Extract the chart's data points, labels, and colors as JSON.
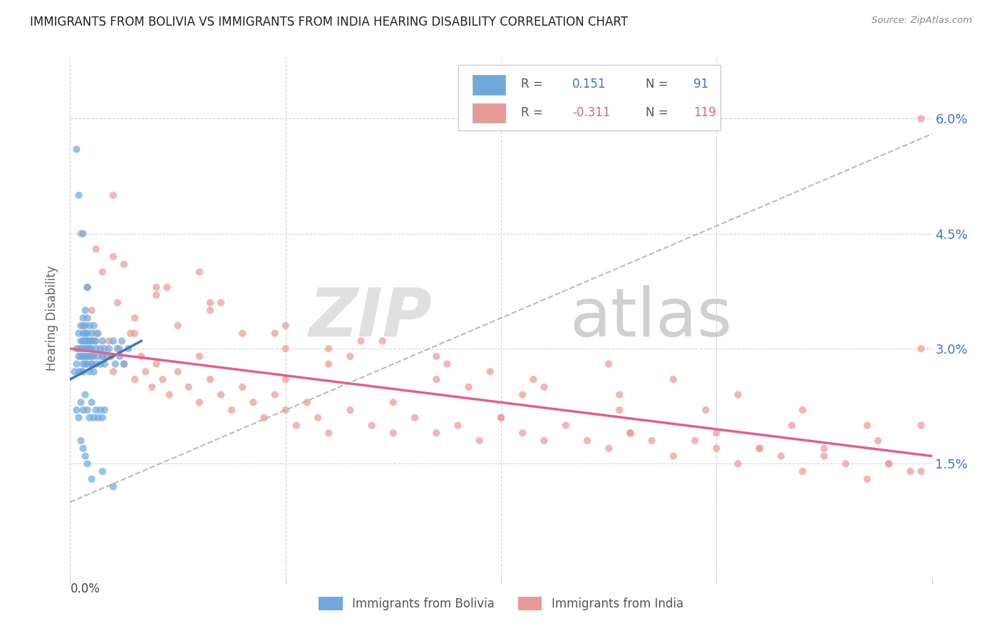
{
  "title": "IMMIGRANTS FROM BOLIVIA VS IMMIGRANTS FROM INDIA HEARING DISABILITY CORRELATION CHART",
  "source": "Source: ZipAtlas.com",
  "ylabel": "Hearing Disability",
  "ytick_labels": [
    "1.5%",
    "3.0%",
    "4.5%",
    "6.0%"
  ],
  "ytick_values": [
    0.015,
    0.03,
    0.045,
    0.06
  ],
  "xlim": [
    0.0,
    0.4
  ],
  "ylim": [
    0.0,
    0.068
  ],
  "color_bolivia": "#6fa8dc",
  "color_india": "#ea9999",
  "trendline_bolivia_color": "#4472c4",
  "trendline_india_color": "#e06090",
  "trendline_dashed_color": "#aaaaaa",
  "background_color": "#ffffff",
  "watermark_zip": "ZIP",
  "watermark_atlas": "atlas",
  "bolivia_x": [
    0.002,
    0.003,
    0.003,
    0.004,
    0.004,
    0.004,
    0.005,
    0.005,
    0.005,
    0.005,
    0.005,
    0.006,
    0.006,
    0.006,
    0.006,
    0.006,
    0.006,
    0.006,
    0.007,
    0.007,
    0.007,
    0.007,
    0.007,
    0.007,
    0.007,
    0.008,
    0.008,
    0.008,
    0.008,
    0.008,
    0.008,
    0.009,
    0.009,
    0.009,
    0.009,
    0.009,
    0.01,
    0.01,
    0.01,
    0.01,
    0.01,
    0.011,
    0.011,
    0.011,
    0.011,
    0.012,
    0.012,
    0.012,
    0.013,
    0.013,
    0.014,
    0.014,
    0.015,
    0.015,
    0.016,
    0.016,
    0.017,
    0.018,
    0.019,
    0.02,
    0.021,
    0.022,
    0.023,
    0.024,
    0.025,
    0.027,
    0.003,
    0.004,
    0.005,
    0.006,
    0.007,
    0.008,
    0.009,
    0.01,
    0.011,
    0.012,
    0.013,
    0.014,
    0.015,
    0.016,
    0.005,
    0.006,
    0.007,
    0.008,
    0.003,
    0.004,
    0.006,
    0.008,
    0.01,
    0.015,
    0.02
  ],
  "bolivia_y": [
    0.027,
    0.03,
    0.028,
    0.032,
    0.029,
    0.027,
    0.033,
    0.031,
    0.029,
    0.027,
    0.03,
    0.034,
    0.032,
    0.03,
    0.028,
    0.031,
    0.029,
    0.027,
    0.035,
    0.033,
    0.031,
    0.029,
    0.032,
    0.03,
    0.028,
    0.034,
    0.032,
    0.03,
    0.028,
    0.031,
    0.029,
    0.033,
    0.031,
    0.029,
    0.027,
    0.03,
    0.032,
    0.03,
    0.028,
    0.031,
    0.029,
    0.033,
    0.031,
    0.029,
    0.027,
    0.03,
    0.028,
    0.031,
    0.029,
    0.032,
    0.03,
    0.028,
    0.031,
    0.029,
    0.03,
    0.028,
    0.029,
    0.03,
    0.029,
    0.031,
    0.028,
    0.03,
    0.029,
    0.031,
    0.028,
    0.03,
    0.022,
    0.021,
    0.023,
    0.022,
    0.024,
    0.022,
    0.021,
    0.023,
    0.021,
    0.022,
    0.021,
    0.022,
    0.021,
    0.022,
    0.018,
    0.017,
    0.016,
    0.015,
    0.056,
    0.05,
    0.045,
    0.038,
    0.013,
    0.014,
    0.012
  ],
  "india_x": [
    0.004,
    0.006,
    0.008,
    0.01,
    0.012,
    0.015,
    0.018,
    0.02,
    0.023,
    0.025,
    0.028,
    0.03,
    0.033,
    0.035,
    0.038,
    0.04,
    0.043,
    0.046,
    0.05,
    0.055,
    0.06,
    0.065,
    0.07,
    0.075,
    0.08,
    0.085,
    0.09,
    0.095,
    0.1,
    0.105,
    0.11,
    0.115,
    0.12,
    0.13,
    0.14,
    0.15,
    0.16,
    0.17,
    0.18,
    0.19,
    0.2,
    0.21,
    0.22,
    0.23,
    0.24,
    0.25,
    0.26,
    0.27,
    0.28,
    0.29,
    0.3,
    0.31,
    0.32,
    0.33,
    0.34,
    0.35,
    0.36,
    0.37,
    0.38,
    0.39,
    0.008,
    0.015,
    0.022,
    0.03,
    0.04,
    0.05,
    0.065,
    0.08,
    0.1,
    0.12,
    0.145,
    0.17,
    0.195,
    0.22,
    0.25,
    0.28,
    0.31,
    0.34,
    0.37,
    0.012,
    0.025,
    0.045,
    0.07,
    0.1,
    0.135,
    0.175,
    0.215,
    0.255,
    0.295,
    0.335,
    0.375,
    0.01,
    0.03,
    0.06,
    0.1,
    0.15,
    0.2,
    0.26,
    0.32,
    0.38,
    0.005,
    0.02,
    0.04,
    0.065,
    0.095,
    0.13,
    0.17,
    0.21,
    0.255,
    0.3,
    0.35,
    0.395,
    0.395,
    0.395,
    0.395,
    0.02,
    0.06,
    0.12,
    0.185
  ],
  "india_y": [
    0.03,
    0.033,
    0.031,
    0.028,
    0.032,
    0.029,
    0.031,
    0.027,
    0.03,
    0.028,
    0.032,
    0.026,
    0.029,
    0.027,
    0.025,
    0.028,
    0.026,
    0.024,
    0.027,
    0.025,
    0.023,
    0.026,
    0.024,
    0.022,
    0.025,
    0.023,
    0.021,
    0.024,
    0.022,
    0.02,
    0.023,
    0.021,
    0.019,
    0.022,
    0.02,
    0.019,
    0.021,
    0.019,
    0.02,
    0.018,
    0.021,
    0.019,
    0.018,
    0.02,
    0.018,
    0.017,
    0.019,
    0.018,
    0.016,
    0.018,
    0.017,
    0.015,
    0.017,
    0.016,
    0.014,
    0.016,
    0.015,
    0.013,
    0.015,
    0.014,
    0.038,
    0.04,
    0.036,
    0.034,
    0.037,
    0.033,
    0.036,
    0.032,
    0.03,
    0.028,
    0.031,
    0.029,
    0.027,
    0.025,
    0.028,
    0.026,
    0.024,
    0.022,
    0.02,
    0.043,
    0.041,
    0.038,
    0.036,
    0.033,
    0.031,
    0.028,
    0.026,
    0.024,
    0.022,
    0.02,
    0.018,
    0.035,
    0.032,
    0.029,
    0.026,
    0.023,
    0.021,
    0.019,
    0.017,
    0.015,
    0.045,
    0.042,
    0.038,
    0.035,
    0.032,
    0.029,
    0.026,
    0.024,
    0.022,
    0.019,
    0.017,
    0.06,
    0.03,
    0.02,
    0.014,
    0.05,
    0.04,
    0.03,
    0.025
  ],
  "bolivia_trend_x0": 0.0,
  "bolivia_trend_x1": 0.033,
  "bolivia_trend_y0": 0.026,
  "bolivia_trend_y1": 0.031,
  "india_trend_x0": 0.0,
  "india_trend_x1": 0.4,
  "india_trend_y0": 0.03,
  "india_trend_y1": 0.016,
  "dashed_trend_x0": 0.0,
  "dashed_trend_x1": 0.4,
  "dashed_trend_y0": 0.01,
  "dashed_trend_y1": 0.058
}
